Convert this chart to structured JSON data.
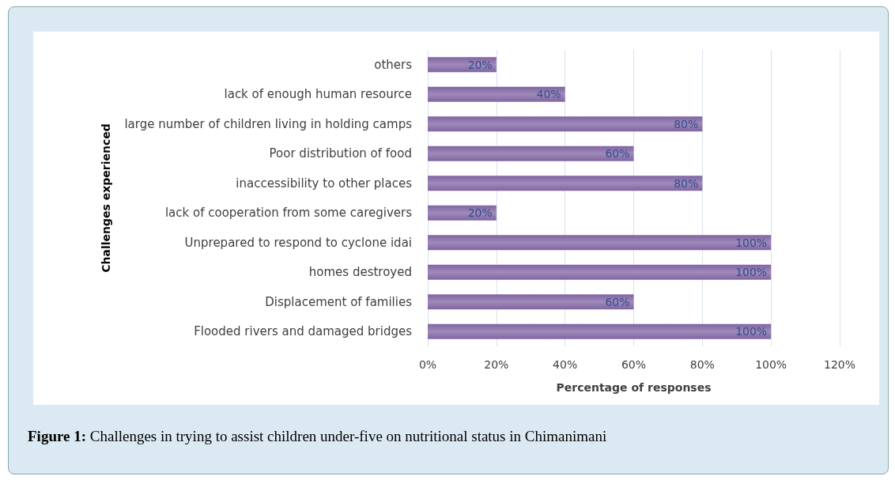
{
  "chart_data": {
    "type": "bar",
    "orientation": "horizontal",
    "xlabel": "Percentage of responses",
    "ylabel": "Challenges experienced",
    "categories": [
      "others",
      "lack of enough human resource",
      "large number of children living in holding camps",
      "Poor distribution of food",
      "inaccessibility to other places",
      "lack of cooperation from some caregivers",
      "Unprepared to respond to cyclone idai",
      "homes destroyed",
      "Displacement of families",
      "Flooded rivers and damaged bridges"
    ],
    "values": [
      20,
      40,
      80,
      60,
      80,
      20,
      100,
      100,
      60,
      100
    ],
    "value_labels": [
      "20%",
      "40%",
      "80%",
      "60%",
      "80%",
      "20%",
      "100%",
      "100%",
      "60%",
      "100%"
    ],
    "color": "#8064a2",
    "xlim": [
      0,
      120
    ],
    "xticks": [
      {
        "value": 0,
        "label": "0%"
      },
      {
        "value": 20,
        "label": "20%"
      },
      {
        "value": 40,
        "label": "40%"
      },
      {
        "value": 60,
        "label": "60%"
      },
      {
        "value": 80,
        "label": "80%"
      },
      {
        "value": 100,
        "label": "100%"
      },
      {
        "value": 120,
        "label": "120%"
      }
    ],
    "grid": "x",
    "annotations": [
      "Figure 1: Challenges in trying to assist children under-five on nutritional status in Chimanimani"
    ]
  }
}
